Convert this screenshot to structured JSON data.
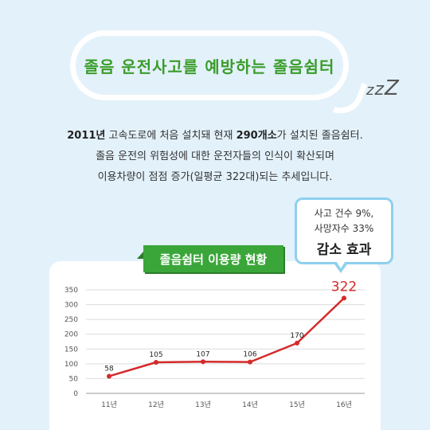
{
  "headline": "졸음 운전사고를 예방하는 졸음쉼터",
  "zzz": [
    "z",
    "z",
    "Z"
  ],
  "description": {
    "line1_bold1": "2011년",
    "line1_text1": " 고속도로에 처음 설치돼 현재 ",
    "line1_bold2": "290개소",
    "line1_text2": "가 설치된 졸음쉼터.",
    "line2": "졸음 운전의 위험성에 대한 운전자들의 인식이 확산되며",
    "line3": "이용차량이 점점 증가(일평균 322대)되는 추세입니다."
  },
  "effect_bubble": {
    "line1": "사고 건수 9%,",
    "line2": "사망자수 33%",
    "line3": "감소 효과"
  },
  "chart_data": {
    "type": "line",
    "title": "졸음쉼터 이용량 현황",
    "categories": [
      "11년",
      "12년",
      "13년",
      "14년",
      "15년",
      "16년"
    ],
    "values": [
      58,
      105,
      107,
      106,
      170,
      322
    ],
    "data_labels": [
      "58",
      "105",
      "107",
      "106",
      "170",
      "322"
    ],
    "ylim": [
      0,
      350
    ],
    "yticks": [
      "0",
      "50",
      "100",
      "150",
      "200",
      "250",
      "300",
      "350"
    ],
    "grid": true,
    "line_color": "#d42a2a",
    "highlight_color": "#d42a2a"
  }
}
